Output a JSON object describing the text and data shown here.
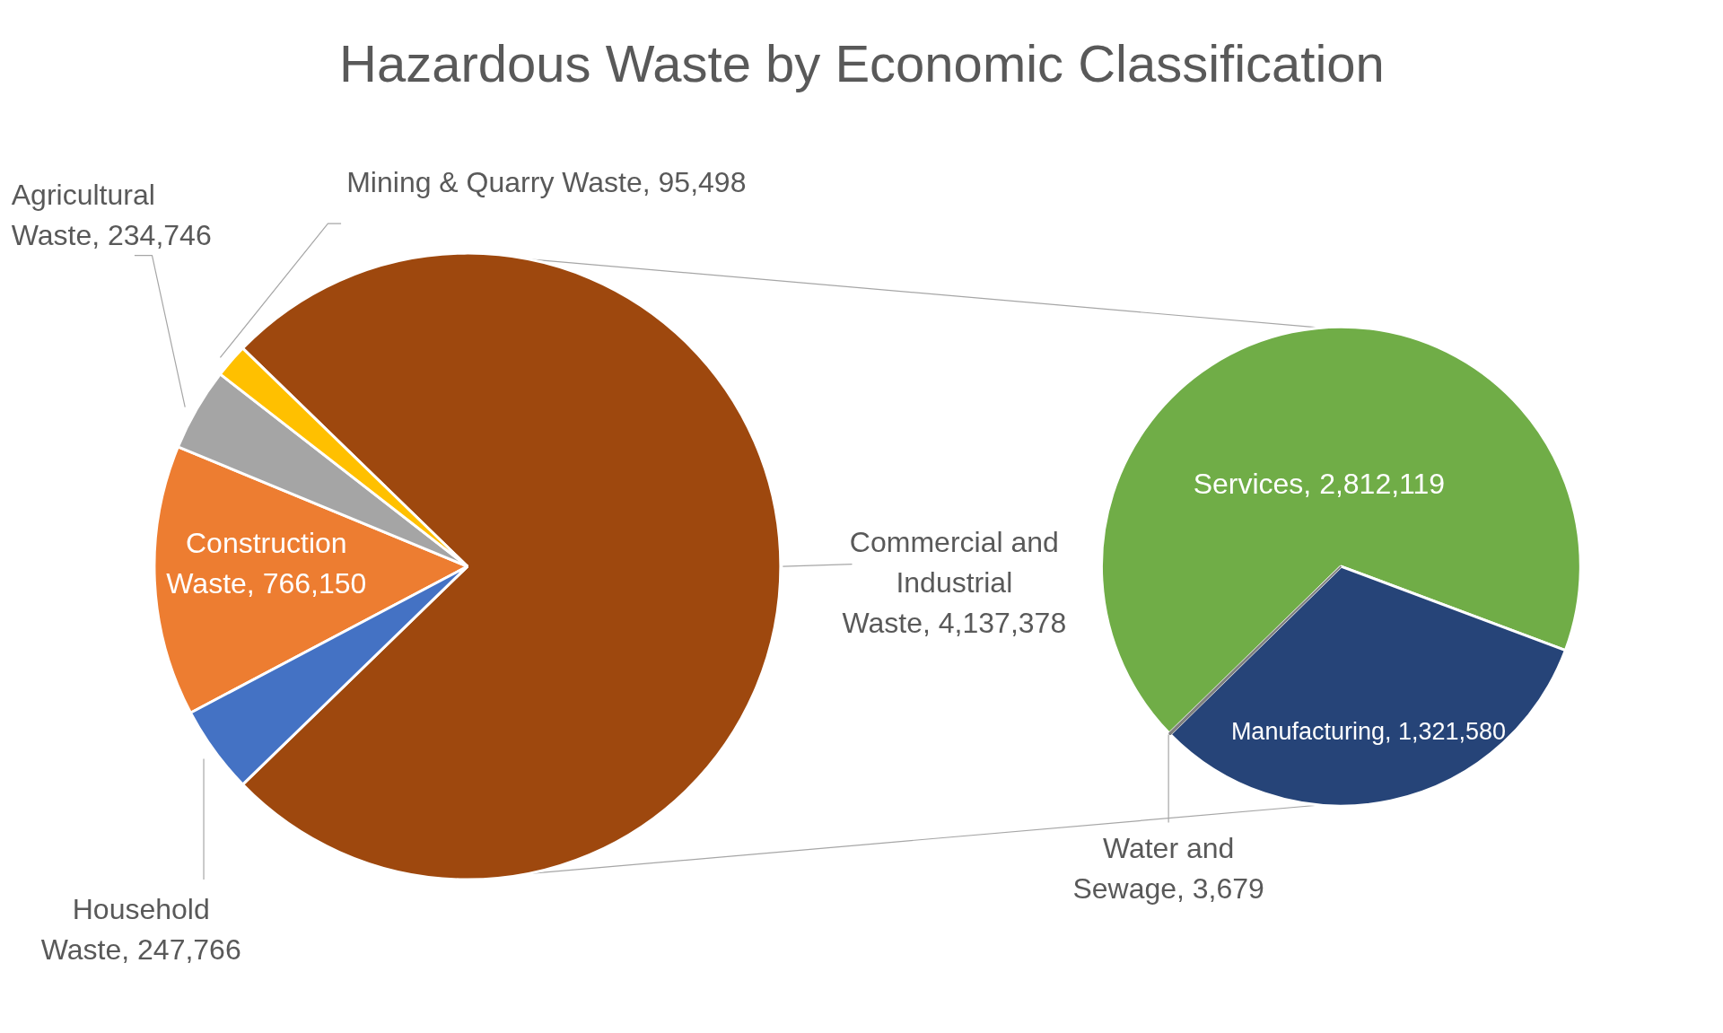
{
  "chart_data": [
    {
      "type": "pie",
      "title": "Hazardous Waste by Economic Classification",
      "categories": [
        "Household Waste",
        "Construction Waste",
        "Agricultural Waste",
        "Mining & Quarry Waste",
        "Commercial and Industrial Waste"
      ],
      "values": [
        247766,
        766150,
        234746,
        95498,
        4137378
      ],
      "value_labels": [
        "247,766",
        "766,150",
        "234,746",
        "95,498",
        "4,137,378"
      ],
      "colors": [
        "#4472c4",
        "#ed7d31",
        "#a5a5a5",
        "#ffc000",
        "#9e480e"
      ]
    },
    {
      "type": "pie",
      "categories": [
        "Services",
        "Water and Sewage",
        "Manufacturing"
      ],
      "values": [
        2812119,
        3679,
        1321580
      ],
      "value_labels": [
        "2,812,119",
        "3,679",
        "1,321,580"
      ],
      "colors": [
        "#70ad47",
        "#7f7f7f",
        "#264478"
      ]
    }
  ]
}
